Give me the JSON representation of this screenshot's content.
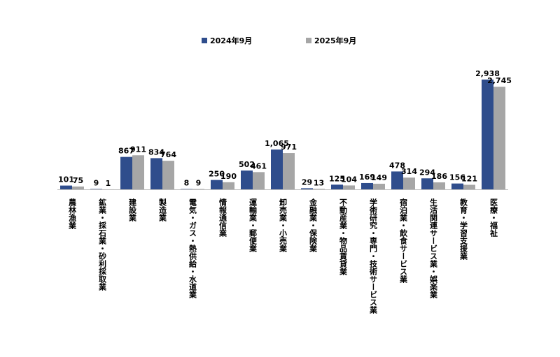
{
  "chart_data": {
    "type": "bar",
    "categories": [
      "農林漁業",
      "鉱業・採石業・砂利採取業",
      "建設業",
      "製造業",
      "電気・ガス・熱供給・水道業",
      "情報通信業",
      "運輸業・郵便業",
      "卸売業・小売業",
      "金融業・保険業",
      "不動産業・物品賃貸業",
      "学術研究・専門・技術サービス業",
      "宿泊業・飲食サービス業",
      "生活関連サービス業・娯楽業",
      "教育・学習支援業",
      "医療・福祉"
    ],
    "series": [
      {
        "name": "2024年9月",
        "color": "#2f4d8c",
        "values": [
          101,
          9,
          867,
          834,
          8,
          250,
          502,
          1065,
          29,
          125,
          169,
          478,
          294,
          156,
          2938
        ],
        "value_labels": [
          "101",
          "9",
          "867",
          "834",
          "8",
          "250",
          "502",
          "1,065",
          "29",
          "125",
          "169",
          "478",
          "294",
          "156",
          "2,938"
        ]
      },
      {
        "name": "2025年9月",
        "color": "#a6a6a6",
        "values": [
          75,
          1,
          911,
          764,
          9,
          190,
          461,
          971,
          13,
          104,
          149,
          314,
          186,
          121,
          2745
        ],
        "value_labels": [
          "75",
          "1",
          "911",
          "764",
          "9",
          "190",
          "461",
          "971",
          "13",
          "104",
          "149",
          "314",
          "186",
          "121",
          "2,745"
        ]
      }
    ],
    "legend": "top"
  }
}
